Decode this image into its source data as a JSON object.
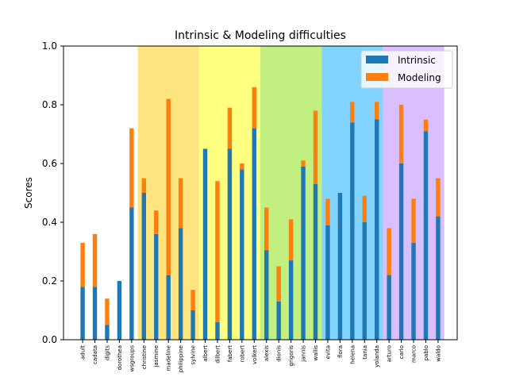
{
  "chart_data": {
    "type": "bar",
    "stacked": true,
    "title": "Intrinsic & Modeling difficulties",
    "xlabel": "",
    "ylabel": "Scores",
    "ylim": [
      0,
      1.0
    ],
    "yticks": [
      "0.0",
      "0.2",
      "0.4",
      "0.6",
      "0.8",
      "1.0"
    ],
    "legend_position": "top-right",
    "categories": [
      "adult",
      "cadata",
      "digits",
      "dorothea",
      "wsgroups",
      "christine",
      "jasmine",
      "madeline",
      "philippine",
      "sylvine",
      "albert",
      "dilbert",
      "fabert",
      "robert",
      "volkert",
      "alexis",
      "dionis",
      "grigoris",
      "jannis",
      "wallis",
      "evita",
      "flora",
      "helena",
      "tania",
      "yolanda",
      "arturo",
      "carlo",
      "marco",
      "pablo",
      "waldo"
    ],
    "series": [
      {
        "name": "Intrinsic",
        "color": "#1f77b4",
        "values": [
          0.18,
          0.18,
          0.05,
          0.2,
          0.45,
          0.5,
          0.36,
          0.22,
          0.38,
          0.1,
          0.65,
          0.06,
          0.65,
          0.58,
          0.72,
          0.305,
          0.13,
          0.27,
          0.59,
          0.53,
          0.39,
          0.5,
          0.74,
          0.4,
          0.75,
          0.22,
          0.6,
          0.33,
          0.71,
          0.42
        ]
      },
      {
        "name": "Modeling",
        "color": "#ff7f0e",
        "values": [
          0.15,
          0.18,
          0.09,
          0.0,
          0.27,
          0.05,
          0.08,
          0.6,
          0.17,
          0.07,
          0.0,
          0.48,
          0.14,
          0.02,
          0.14,
          0.145,
          0.12,
          0.14,
          0.02,
          0.25,
          0.09,
          0.0,
          0.07,
          0.09,
          0.06,
          0.16,
          0.2,
          0.15,
          0.04,
          0.13
        ]
      }
    ],
    "bands": [
      {
        "from": 0,
        "to": 4,
        "color": "#ffffff"
      },
      {
        "from": 5,
        "to": 9,
        "color": "#ffe480"
      },
      {
        "from": 10,
        "to": 14,
        "color": "#ffff80"
      },
      {
        "from": 15,
        "to": 19,
        "color": "#c2f080"
      },
      {
        "from": 20,
        "to": 24,
        "color": "#80d4ff"
      },
      {
        "from": 25,
        "to": 29,
        "color": "#d9bfff"
      }
    ]
  }
}
